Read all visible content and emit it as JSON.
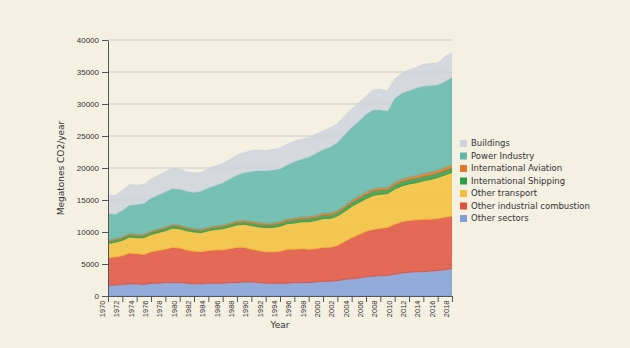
{
  "chart_data": {
    "type": "area",
    "stacked": true,
    "grid": true,
    "legend": "right",
    "xlabel": "Year",
    "ylabel": "Megatones CO2/year",
    "x": [
      1970,
      1971,
      1972,
      1973,
      1974,
      1975,
      1976,
      1977,
      1978,
      1979,
      1980,
      1981,
      1982,
      1983,
      1984,
      1985,
      1986,
      1987,
      1988,
      1989,
      1990,
      1991,
      1992,
      1993,
      1994,
      1995,
      1996,
      1997,
      1998,
      1999,
      2000,
      2001,
      2002,
      2003,
      2004,
      2005,
      2006,
      2007,
      2008,
      2009,
      2010,
      2011,
      2012,
      2013,
      2014,
      2015,
      2016,
      2017,
      2018
    ],
    "xlim": [
      1970,
      2018
    ],
    "xticks": [
      1970,
      1972,
      1974,
      1976,
      1978,
      1980,
      1982,
      1984,
      1986,
      1988,
      1990,
      1992,
      1994,
      1996,
      1998,
      2000,
      2002,
      2004,
      2006,
      2008,
      2010,
      2012,
      2014,
      2016,
      2018
    ],
    "ylim": [
      0,
      40000
    ],
    "yticks": [
      0,
      5000,
      10000,
      15000,
      20000,
      25000,
      30000,
      35000,
      40000
    ],
    "series": [
      {
        "name": "Buildings",
        "color": "#cfd3dc",
        "values": [
          2900,
          2900,
          3100,
          3200,
          3000,
          2900,
          3000,
          3000,
          3100,
          3200,
          3100,
          3000,
          3000,
          2900,
          3000,
          3000,
          3000,
          3000,
          3100,
          3100,
          3200,
          3200,
          3100,
          3200,
          3200,
          3200,
          3200,
          3100,
          3000,
          3000,
          2900,
          3000,
          2900,
          2900,
          2800,
          2900,
          2800,
          3100,
          3200,
          3100,
          3000,
          3100,
          3200,
          3200,
          3400,
          3400,
          3400,
          3900,
          3800
        ]
      },
      {
        "name": "Power Industry",
        "color": "#5fb8aa",
        "values": [
          4180,
          3865,
          4150,
          4435,
          4650,
          4860,
          5145,
          5330,
          5510,
          5595,
          5610,
          5635,
          5655,
          5960,
          6145,
          6325,
          6605,
          6885,
          7165,
          7450,
          7835,
          8130,
          8215,
          8305,
          8285,
          8460,
          8840,
          9020,
          9305,
          9680,
          9945,
          10345,
          10640,
          11115,
          11450,
          11705,
          12160,
          12325,
          12135,
          11900,
          13135,
          13400,
          13500,
          13690,
          13665,
          13540,
          13310,
          13380,
          13650
        ]
      },
      {
        "name": "International Aviation",
        "color": "#e2772e",
        "values": [
          170,
          175,
          180,
          185,
          180,
          180,
          185,
          190,
          200,
          205,
          200,
          195,
          195,
          200,
          205,
          215,
          225,
          235,
          245,
          250,
          255,
          250,
          255,
          255,
          265,
          270,
          280,
          290,
          295,
          300,
          315,
          305,
          300,
          305,
          330,
          345,
          360,
          375,
          375,
          360,
          385,
          400,
          410,
          420,
          435,
          460,
          490,
          510,
          530
        ]
      },
      {
        "name": "International Shipping",
        "color": "#2f9a48",
        "values": [
          350,
          360,
          370,
          380,
          370,
          360,
          370,
          380,
          390,
          400,
          390,
          370,
          350,
          340,
          350,
          360,
          370,
          380,
          390,
          400,
          410,
          420,
          430,
          440,
          450,
          470,
          480,
          490,
          500,
          520,
          540,
          550,
          560,
          580,
          620,
          650,
          680,
          700,
          690,
          640,
          680,
          700,
          690,
          690,
          700,
          700,
          700,
          710,
          720
        ]
      },
      {
        "name": "Other transport",
        "color": "#f2c038",
        "values": [
          2200,
          2300,
          2400,
          2500,
          2500,
          2600,
          2700,
          2800,
          2900,
          3000,
          3000,
          3000,
          3000,
          3000,
          3100,
          3200,
          3300,
          3400,
          3500,
          3600,
          3700,
          3700,
          3800,
          3800,
          3900,
          4000,
          4100,
          4200,
          4300,
          4400,
          4500,
          4500,
          4600,
          4700,
          4900,
          5000,
          5100,
          5300,
          5300,
          5300,
          5500,
          5600,
          5700,
          5800,
          6000,
          6200,
          6400,
          6600,
          6800
        ]
      },
      {
        "name": "Other industrial combustion",
        "color": "#e0523e",
        "values": [
          4300,
          4400,
          4500,
          4800,
          4700,
          4700,
          4900,
          5100,
          5200,
          5500,
          5400,
          5200,
          5100,
          5000,
          5100,
          5200,
          5200,
          5300,
          5500,
          5400,
          5100,
          5000,
          4900,
          4900,
          5000,
          5300,
          5200,
          5300,
          5200,
          5200,
          5300,
          5300,
          5500,
          5900,
          6400,
          6800,
          7100,
          7300,
          7400,
          7500,
          7800,
          8000,
          8100,
          8100,
          8200,
          8100,
          8100,
          8200,
          8200
        ]
      },
      {
        "name": "Other sectors",
        "color": "#7f9fd8",
        "values": [
          1700,
          1700,
          1800,
          1900,
          1900,
          1800,
          2000,
          2000,
          2100,
          2100,
          2100,
          2000,
          1900,
          1900,
          2000,
          2000,
          2000,
          2100,
          2100,
          2200,
          2200,
          2100,
          2000,
          2000,
          2000,
          2000,
          2100,
          2100,
          2100,
          2200,
          2300,
          2300,
          2400,
          2600,
          2700,
          2800,
          3000,
          3100,
          3200,
          3200,
          3400,
          3600,
          3700,
          3800,
          3800,
          3900,
          4000,
          4100,
          4300
        ]
      }
    ]
  }
}
